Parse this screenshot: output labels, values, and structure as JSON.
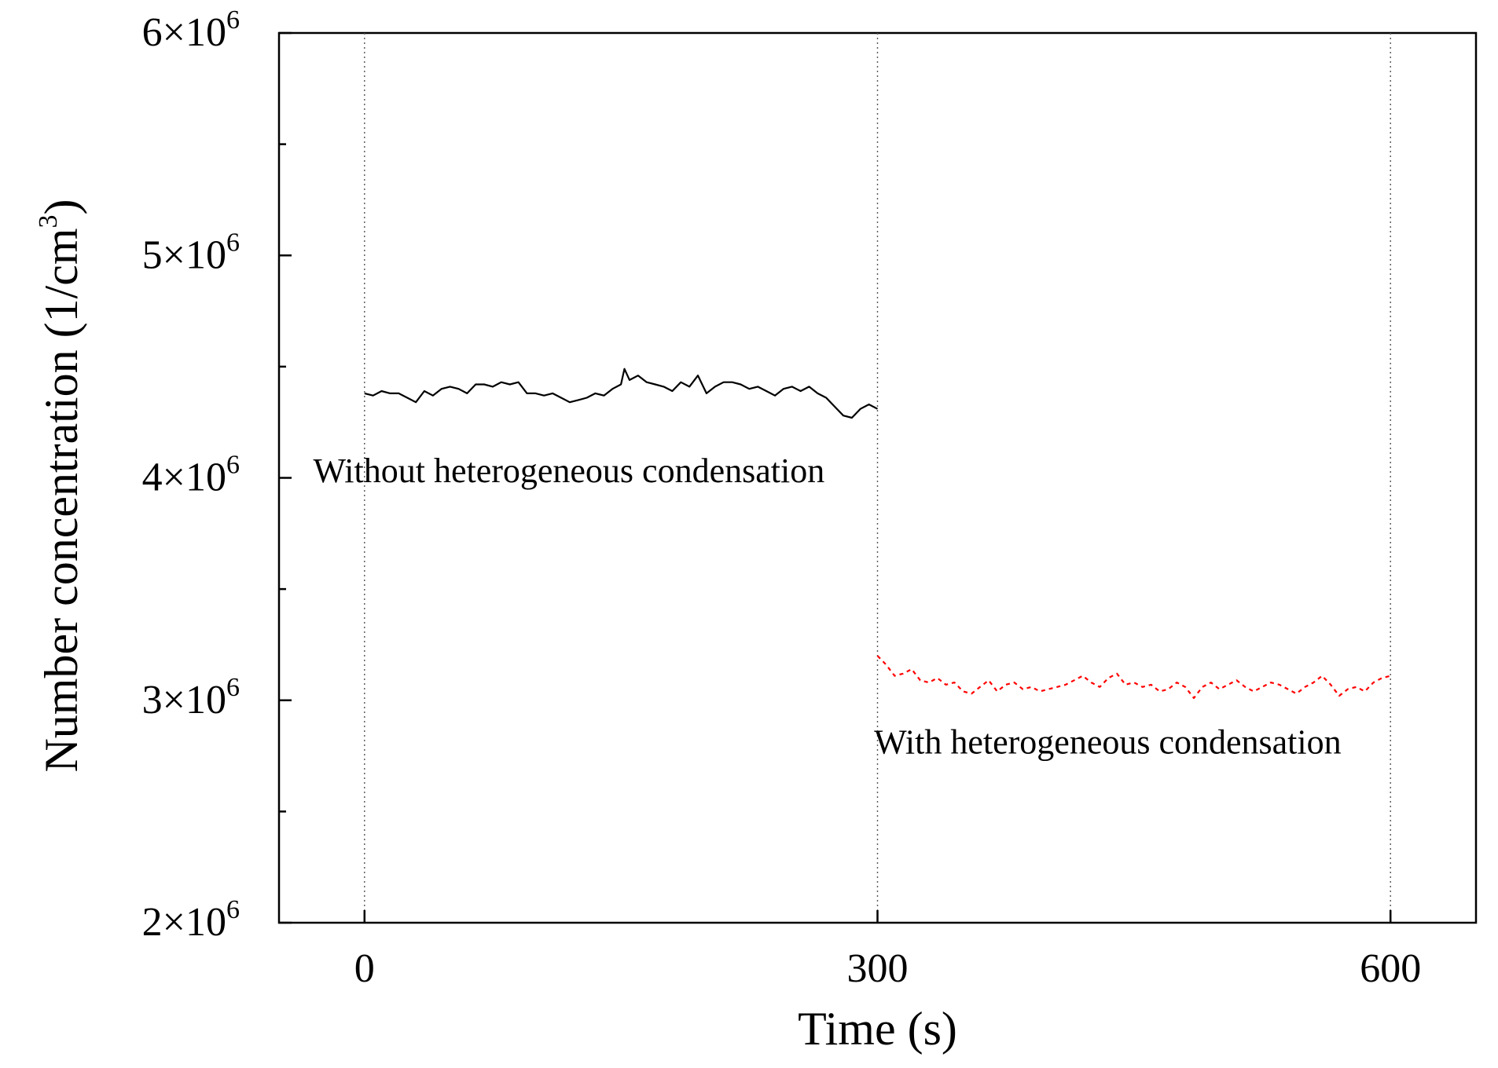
{
  "chart_data": {
    "type": "line",
    "xlabel": "Time (s)",
    "ylabel": "Number concentration (1/cm",
    "ylabel_sup": "3",
    "ylabel_close": ")",
    "xlim": [
      -50,
      650
    ],
    "ylim": [
      2000000,
      6000000
    ],
    "x_ticks": [
      {
        "value": 0,
        "label": "0"
      },
      {
        "value": 300,
        "label": "300"
      },
      {
        "value": 600,
        "label": "600"
      }
    ],
    "y_ticks": [
      {
        "value": 2000000,
        "mant": "2×10",
        "exp": "6"
      },
      {
        "value": 3000000,
        "mant": "3×10",
        "exp": "6"
      },
      {
        "value": 4000000,
        "mant": "4×10",
        "exp": "6"
      },
      {
        "value": 5000000,
        "mant": "5×10",
        "exp": "6"
      },
      {
        "value": 6000000,
        "mant": "6×10",
        "exp": "6"
      }
    ],
    "y_minor_ticks": [
      2500000,
      3500000,
      4500000,
      5500000
    ],
    "vertical_dotted_lines": [
      0,
      300,
      600
    ],
    "grid": false,
    "annotations": [
      {
        "text": "Without heterogeneous condensation",
        "x": -30,
        "y": 3980000
      },
      {
        "text": "With heterogeneous condensation",
        "x": 298,
        "y": 2760000
      }
    ],
    "series": [
      {
        "color": "#000000",
        "style": "solid",
        "x": [
          0,
          5,
          10,
          15,
          20,
          25,
          30,
          35,
          40,
          45,
          50,
          55,
          60,
          65,
          70,
          75,
          80,
          85,
          90,
          95,
          100,
          105,
          110,
          115,
          120,
          125,
          130,
          135,
          140,
          145,
          150,
          152,
          155,
          160,
          165,
          170,
          175,
          180,
          185,
          190,
          195,
          200,
          205,
          210,
          215,
          220,
          225,
          230,
          235,
          240,
          245,
          250,
          255,
          260,
          265,
          270,
          275,
          280,
          285,
          290,
          295,
          300
        ],
        "y": [
          4380000,
          4370000,
          4390000,
          4380000,
          4380000,
          4360000,
          4340000,
          4390000,
          4370000,
          4400000,
          4410000,
          4400000,
          4380000,
          4420000,
          4420000,
          4410000,
          4430000,
          4420000,
          4430000,
          4380000,
          4380000,
          4370000,
          4380000,
          4360000,
          4340000,
          4350000,
          4360000,
          4380000,
          4370000,
          4400000,
          4420000,
          4490000,
          4440000,
          4460000,
          4430000,
          4420000,
          4410000,
          4390000,
          4430000,
          4410000,
          4460000,
          4380000,
          4410000,
          4430000,
          4430000,
          4420000,
          4400000,
          4410000,
          4390000,
          4370000,
          4400000,
          4410000,
          4390000,
          4410000,
          4380000,
          4360000,
          4320000,
          4280000,
          4270000,
          4310000,
          4330000,
          4310000
        ]
      },
      {
        "color": "#ff0000",
        "style": "dotted",
        "x": [
          300,
          305,
          310,
          315,
          320,
          325,
          330,
          335,
          340,
          345,
          350,
          355,
          360,
          365,
          370,
          375,
          380,
          385,
          390,
          395,
          400,
          405,
          410,
          415,
          420,
          425,
          430,
          435,
          440,
          445,
          450,
          455,
          460,
          465,
          470,
          475,
          480,
          485,
          490,
          495,
          500,
          505,
          510,
          515,
          520,
          525,
          530,
          535,
          540,
          545,
          550,
          555,
          560,
          565,
          570,
          575,
          580,
          585,
          590,
          595,
          600
        ],
        "y": [
          3200000,
          3160000,
          3110000,
          3120000,
          3140000,
          3090000,
          3080000,
          3100000,
          3070000,
          3080000,
          3040000,
          3030000,
          3060000,
          3090000,
          3040000,
          3070000,
          3080000,
          3050000,
          3060000,
          3040000,
          3050000,
          3060000,
          3070000,
          3090000,
          3110000,
          3080000,
          3060000,
          3100000,
          3120000,
          3070000,
          3080000,
          3060000,
          3070000,
          3040000,
          3050000,
          3080000,
          3060000,
          3010000,
          3060000,
          3080000,
          3050000,
          3070000,
          3090000,
          3060000,
          3040000,
          3060000,
          3080000,
          3070000,
          3050000,
          3030000,
          3060000,
          3080000,
          3110000,
          3070000,
          3020000,
          3050000,
          3060000,
          3040000,
          3080000,
          3100000,
          3110000
        ]
      }
    ]
  }
}
